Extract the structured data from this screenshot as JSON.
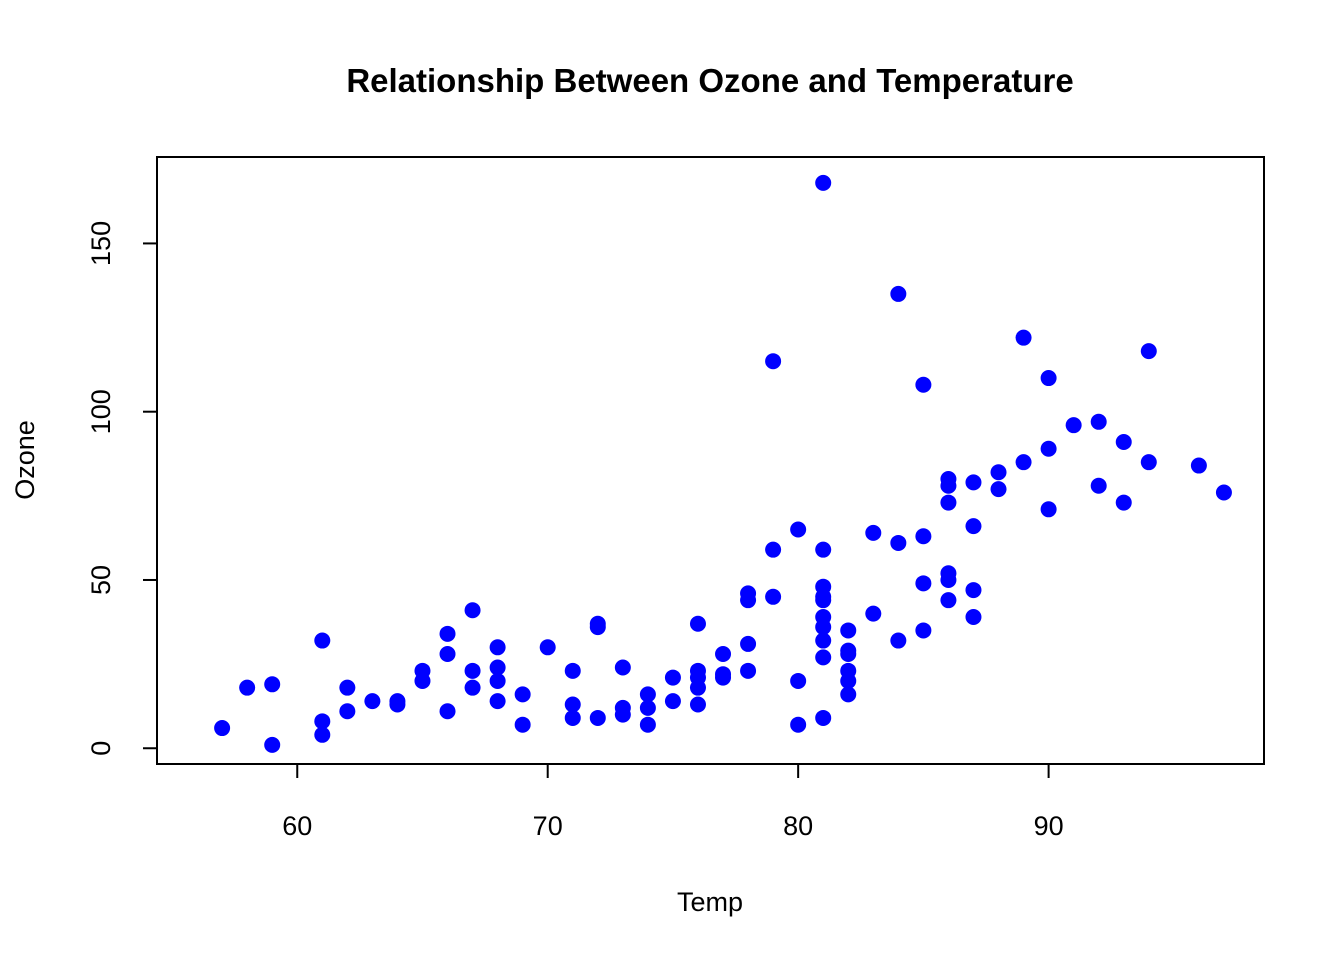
{
  "chart_data": {
    "type": "scatter",
    "title": "Relationship Between Ozone and Temperature",
    "xlabel": "Temp",
    "ylabel": "Ozone",
    "xlim": [
      54.4,
      98.6
    ],
    "ylim": [
      -4.68,
      175.68
    ],
    "xticks": [
      60,
      70,
      80,
      90
    ],
    "yticks": [
      0,
      50,
      100,
      150
    ],
    "grid": false,
    "legend": "none",
    "point_color": "#0000ff",
    "points": [
      {
        "x": 57,
        "y": 6
      },
      {
        "x": 58,
        "y": 18
      },
      {
        "x": 59,
        "y": 19
      },
      {
        "x": 59,
        "y": 1
      },
      {
        "x": 61,
        "y": 32
      },
      {
        "x": 61,
        "y": 8
      },
      {
        "x": 61,
        "y": 4
      },
      {
        "x": 62,
        "y": 18
      },
      {
        "x": 62,
        "y": 11
      },
      {
        "x": 63,
        "y": 14
      },
      {
        "x": 64,
        "y": 14
      },
      {
        "x": 64,
        "y": 13
      },
      {
        "x": 65,
        "y": 23
      },
      {
        "x": 65,
        "y": 20
      },
      {
        "x": 66,
        "y": 34
      },
      {
        "x": 66,
        "y": 28
      },
      {
        "x": 66,
        "y": 11
      },
      {
        "x": 67,
        "y": 41
      },
      {
        "x": 67,
        "y": 23
      },
      {
        "x": 67,
        "y": 18
      },
      {
        "x": 68,
        "y": 30
      },
      {
        "x": 68,
        "y": 24
      },
      {
        "x": 68,
        "y": 20
      },
      {
        "x": 68,
        "y": 14
      },
      {
        "x": 69,
        "y": 16
      },
      {
        "x": 69,
        "y": 7
      },
      {
        "x": 70,
        "y": 30
      },
      {
        "x": 71,
        "y": 23
      },
      {
        "x": 71,
        "y": 13
      },
      {
        "x": 71,
        "y": 9
      },
      {
        "x": 72,
        "y": 37
      },
      {
        "x": 72,
        "y": 36
      },
      {
        "x": 72,
        "y": 9
      },
      {
        "x": 73,
        "y": 24
      },
      {
        "x": 73,
        "y": 12
      },
      {
        "x": 73,
        "y": 10
      },
      {
        "x": 74,
        "y": 16
      },
      {
        "x": 74,
        "y": 12
      },
      {
        "x": 74,
        "y": 7
      },
      {
        "x": 75,
        "y": 21
      },
      {
        "x": 75,
        "y": 14
      },
      {
        "x": 76,
        "y": 37
      },
      {
        "x": 76,
        "y": 23
      },
      {
        "x": 76,
        "y": 21
      },
      {
        "x": 76,
        "y": 18
      },
      {
        "x": 76,
        "y": 13
      },
      {
        "x": 77,
        "y": 28
      },
      {
        "x": 77,
        "y": 22
      },
      {
        "x": 77,
        "y": 21
      },
      {
        "x": 78,
        "y": 46
      },
      {
        "x": 78,
        "y": 44
      },
      {
        "x": 78,
        "y": 31
      },
      {
        "x": 78,
        "y": 23
      },
      {
        "x": 79,
        "y": 115
      },
      {
        "x": 79,
        "y": 59
      },
      {
        "x": 79,
        "y": 45
      },
      {
        "x": 80,
        "y": 65
      },
      {
        "x": 80,
        "y": 20
      },
      {
        "x": 80,
        "y": 7
      },
      {
        "x": 81,
        "y": 168
      },
      {
        "x": 81,
        "y": 59
      },
      {
        "x": 81,
        "y": 48
      },
      {
        "x": 81,
        "y": 45
      },
      {
        "x": 81,
        "y": 44
      },
      {
        "x": 81,
        "y": 39
      },
      {
        "x": 81,
        "y": 36
      },
      {
        "x": 81,
        "y": 32
      },
      {
        "x": 81,
        "y": 27
      },
      {
        "x": 81,
        "y": 9
      },
      {
        "x": 82,
        "y": 35
      },
      {
        "x": 82,
        "y": 29
      },
      {
        "x": 82,
        "y": 28
      },
      {
        "x": 82,
        "y": 23
      },
      {
        "x": 82,
        "y": 20
      },
      {
        "x": 82,
        "y": 16
      },
      {
        "x": 83,
        "y": 64
      },
      {
        "x": 83,
        "y": 40
      },
      {
        "x": 84,
        "y": 135
      },
      {
        "x": 84,
        "y": 61
      },
      {
        "x": 84,
        "y": 32
      },
      {
        "x": 85,
        "y": 108
      },
      {
        "x": 85,
        "y": 63
      },
      {
        "x": 85,
        "y": 49
      },
      {
        "x": 85,
        "y": 35
      },
      {
        "x": 86,
        "y": 80
      },
      {
        "x": 86,
        "y": 78
      },
      {
        "x": 86,
        "y": 73
      },
      {
        "x": 86,
        "y": 52
      },
      {
        "x": 86,
        "y": 50
      },
      {
        "x": 86,
        "y": 44
      },
      {
        "x": 87,
        "y": 79
      },
      {
        "x": 87,
        "y": 66
      },
      {
        "x": 87,
        "y": 47
      },
      {
        "x": 87,
        "y": 39
      },
      {
        "x": 88,
        "y": 82
      },
      {
        "x": 88,
        "y": 77
      },
      {
        "x": 89,
        "y": 122
      },
      {
        "x": 89,
        "y": 85
      },
      {
        "x": 90,
        "y": 110
      },
      {
        "x": 90,
        "y": 89
      },
      {
        "x": 90,
        "y": 71
      },
      {
        "x": 91,
        "y": 96
      },
      {
        "x": 92,
        "y": 97
      },
      {
        "x": 92,
        "y": 78
      },
      {
        "x": 93,
        "y": 91
      },
      {
        "x": 93,
        "y": 73
      },
      {
        "x": 94,
        "y": 118
      },
      {
        "x": 94,
        "y": 85
      },
      {
        "x": 96,
        "y": 84
      },
      {
        "x": 97,
        "y": 76
      }
    ]
  }
}
